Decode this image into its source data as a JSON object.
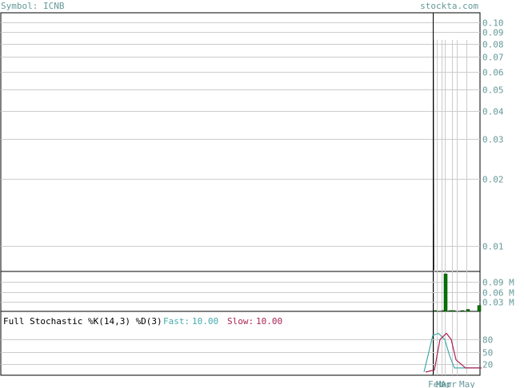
{
  "header": {
    "symbol_label": "Symbol: ICNB",
    "site": "stockta.com"
  },
  "colors": {
    "label": "#669999",
    "grid": "#cccccc",
    "frame": "#000000",
    "volume_bar": "#007700",
    "fast": "#44aaaa",
    "slow": "#aa2255"
  },
  "chart_data": [
    {
      "type": "line",
      "name": "price",
      "y_scale": "log",
      "ylim": [
        0.0077,
        0.11
      ],
      "yticks": [
        0.1,
        0.09,
        0.08,
        0.07,
        0.06,
        0.05,
        0.04,
        0.03,
        0.02,
        0.01
      ],
      "ytick_labels": [
        "0.10",
        "0.09",
        "0.08",
        "0.07",
        "0.06",
        "0.05",
        "0.04",
        "0.03",
        "0.02",
        "0.01"
      ],
      "xticks": [
        "Feb",
        "Mar",
        "Apr",
        "May"
      ],
      "points": [
        {
          "x": "Feb",
          "y": 0.09
        },
        {
          "x": "Feb",
          "y": 0.02
        },
        {
          "x": "Feb",
          "y": 0.0078
        }
      ]
    },
    {
      "type": "bar",
      "name": "volume",
      "unit": "M",
      "ylim": [
        0,
        0.12
      ],
      "yticks": [
        0.09,
        0.06,
        0.03
      ],
      "ytick_labels": [
        "0.09 M",
        "0.06 M",
        "0.03 M"
      ],
      "categories": [
        "Feb",
        "Feb",
        "Mar",
        "Mar",
        "Apr",
        "Apr",
        "May",
        "May"
      ],
      "values": [
        0.002,
        0.115,
        0.002,
        0.002,
        0.002,
        0.002,
        0.006,
        0.018
      ]
    },
    {
      "type": "line",
      "name": "stochastic",
      "label": "Full Stochastic %K(14,3) %D(3)",
      "fast_label": "Fast:",
      "fast_value": "10.00",
      "slow_label": "Slow:",
      "slow_value": "10.00",
      "ylim": [
        0,
        100
      ],
      "yticks": [
        80,
        50,
        20
      ],
      "ytick_labels": [
        "80",
        "50",
        "20"
      ],
      "x": [
        "Feb",
        "Feb",
        "Mar",
        "Mar",
        "Apr",
        "Apr",
        "May",
        "May"
      ],
      "series": [
        {
          "name": "Fast",
          "values": [
            0,
            90,
            95,
            80,
            40,
            10,
            10,
            10
          ]
        },
        {
          "name": "Slow",
          "values": [
            0,
            5,
            80,
            95,
            80,
            30,
            10,
            10
          ]
        }
      ]
    }
  ]
}
